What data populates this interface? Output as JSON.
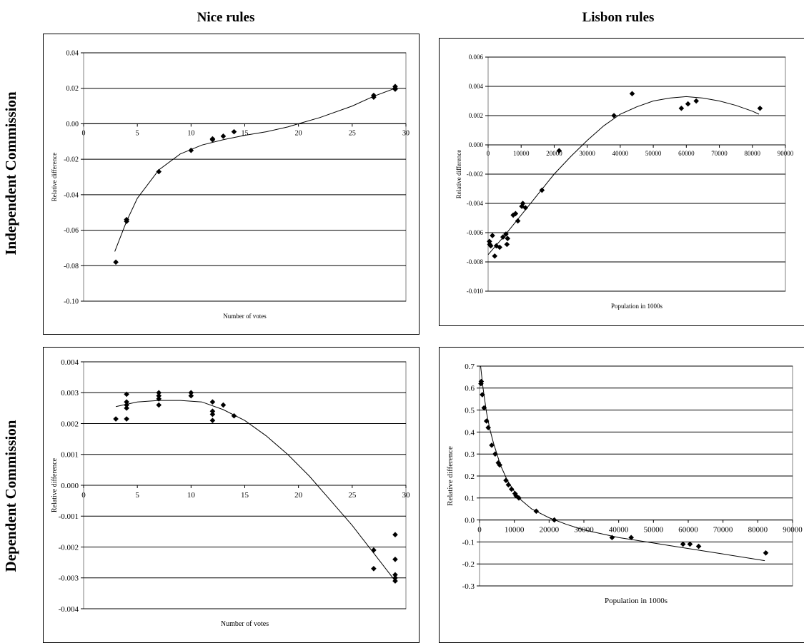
{
  "headers": {
    "columns": [
      "Nice rules",
      "Lisbon rules"
    ],
    "rows": [
      "Independent Commission",
      "Dependent Commission"
    ]
  },
  "chart_data": [
    {
      "type": "scatter",
      "id": "p1",
      "xlabel": "Number of votes",
      "ylabel": "Relative difference",
      "xlim": [
        0,
        30
      ],
      "ylim": [
        -0.1,
        0.04
      ],
      "xticks": [
        0,
        5,
        10,
        15,
        20,
        25,
        30
      ],
      "yticks": [
        0.04,
        0.02,
        0.0,
        -0.02,
        -0.04,
        -0.06,
        -0.08,
        -0.1
      ],
      "ytick_decimals": 2,
      "grid": true,
      "points": [
        [
          3,
          -0.078
        ],
        [
          4,
          -0.055
        ],
        [
          4,
          -0.054
        ],
        [
          7,
          -0.027
        ],
        [
          10,
          -0.015
        ],
        [
          12,
          -0.009
        ],
        [
          12,
          -0.0085
        ],
        [
          13,
          -0.007
        ],
        [
          14,
          -0.0045
        ],
        [
          27,
          0.016
        ],
        [
          27,
          0.015
        ],
        [
          29,
          0.02
        ],
        [
          29,
          0.021
        ],
        [
          29,
          0.0195
        ]
      ],
      "trend": [
        [
          2.9,
          -0.072
        ],
        [
          4,
          -0.055
        ],
        [
          5,
          -0.042
        ],
        [
          7,
          -0.026
        ],
        [
          9,
          -0.017
        ],
        [
          11,
          -0.012
        ],
        [
          13,
          -0.009
        ],
        [
          15,
          -0.0065
        ],
        [
          17,
          -0.0045
        ],
        [
          19,
          -0.0018
        ],
        [
          20,
          0.0
        ],
        [
          22,
          0.0035
        ],
        [
          25,
          0.01
        ],
        [
          27,
          0.0155
        ],
        [
          29,
          0.02
        ]
      ]
    },
    {
      "type": "scatter",
      "id": "p2",
      "xlabel": "Population in 1000s",
      "ylabel": "Relative difference",
      "xlim": [
        0,
        90000
      ],
      "ylim": [
        -0.01,
        0.006
      ],
      "xticks": [
        0,
        10000,
        20000,
        30000,
        40000,
        50000,
        60000,
        70000,
        80000,
        90000
      ],
      "yticks": [
        0.006,
        0.004,
        0.002,
        0.0,
        -0.002,
        -0.004,
        -0.006,
        -0.008,
        -0.01
      ],
      "ytick_decimals": 3,
      "grid": true,
      "points": [
        [
          400,
          -0.0066
        ],
        [
          500,
          -0.0068
        ],
        [
          800,
          -0.0069
        ],
        [
          1300,
          -0.0062
        ],
        [
          2000,
          -0.0076
        ],
        [
          2500,
          -0.0069
        ],
        [
          3500,
          -0.007
        ],
        [
          4500,
          -0.0063
        ],
        [
          5400,
          -0.0061
        ],
        [
          5700,
          -0.0068
        ],
        [
          5900,
          -0.0064
        ],
        [
          7600,
          -0.0048
        ],
        [
          8300,
          -0.0047
        ],
        [
          9000,
          -0.0052
        ],
        [
          10200,
          -0.0042
        ],
        [
          10500,
          -0.004
        ],
        [
          11300,
          -0.0043
        ],
        [
          16300,
          -0.0031
        ],
        [
          21500,
          -0.0004
        ],
        [
          38100,
          0.002
        ],
        [
          43600,
          0.0035
        ],
        [
          58500,
          0.0025
        ],
        [
          60500,
          0.0028
        ],
        [
          63000,
          0.003
        ],
        [
          82300,
          0.0025
        ]
      ],
      "trend": [
        [
          0,
          -0.0075
        ],
        [
          5000,
          -0.0062
        ],
        [
          10000,
          -0.0048
        ],
        [
          15000,
          -0.0034
        ],
        [
          20000,
          -0.002
        ],
        [
          25000,
          -0.0008
        ],
        [
          30000,
          0.0003
        ],
        [
          35000,
          0.0013
        ],
        [
          40000,
          0.0021
        ],
        [
          45000,
          0.0026
        ],
        [
          50000,
          0.003
        ],
        [
          55000,
          0.0032
        ],
        [
          60000,
          0.0033
        ],
        [
          65000,
          0.0032
        ],
        [
          70000,
          0.003
        ],
        [
          75000,
          0.0027
        ],
        [
          80000,
          0.0023
        ],
        [
          82000,
          0.0021
        ]
      ]
    },
    {
      "type": "scatter",
      "id": "p3",
      "xlabel": "Number of votes",
      "ylabel": "Relative difference",
      "xlim": [
        0,
        30
      ],
      "ylim": [
        -0.004,
        0.004
      ],
      "xticks": [
        0,
        5,
        10,
        15,
        20,
        25,
        30
      ],
      "yticks": [
        0.004,
        0.003,
        0.002,
        0.001,
        0.0,
        -0.001,
        -0.002,
        -0.003,
        -0.004
      ],
      "ytick_decimals": 3,
      "grid": true,
      "points": [
        [
          3,
          0.00215
        ],
        [
          4,
          0.00295
        ],
        [
          4,
          0.0027
        ],
        [
          4,
          0.0026
        ],
        [
          4,
          0.0025
        ],
        [
          4,
          0.00215
        ],
        [
          7,
          0.003
        ],
        [
          7,
          0.0029
        ],
        [
          7,
          0.0028
        ],
        [
          7,
          0.0026
        ],
        [
          10,
          0.003
        ],
        [
          10,
          0.0029
        ],
        [
          12,
          0.0027
        ],
        [
          12,
          0.0024
        ],
        [
          12,
          0.0023
        ],
        [
          12,
          0.0021
        ],
        [
          13,
          0.0026
        ],
        [
          14,
          0.00225
        ],
        [
          27,
          -0.0021
        ],
        [
          27,
          -0.0027
        ],
        [
          29,
          -0.0016
        ],
        [
          29,
          -0.0024
        ],
        [
          29,
          -0.0029
        ],
        [
          29,
          -0.003
        ],
        [
          29,
          -0.0031
        ]
      ],
      "trend": [
        [
          3,
          0.00255
        ],
        [
          5,
          0.0027
        ],
        [
          7,
          0.00275
        ],
        [
          9,
          0.00275
        ],
        [
          11,
          0.0027
        ],
        [
          13,
          0.00245
        ],
        [
          15,
          0.0021
        ],
        [
          17,
          0.0016
        ],
        [
          19,
          0.001
        ],
        [
          21,
          0.0003
        ],
        [
          23,
          -0.0005
        ],
        [
          25,
          -0.0013
        ],
        [
          27,
          -0.0022
        ],
        [
          29,
          -0.0031
        ]
      ]
    },
    {
      "type": "scatter",
      "id": "p4",
      "xlabel": "Population in 1000s",
      "ylabel": "Relative difference",
      "xlim": [
        0,
        90000
      ],
      "ylim": [
        -0.3,
        0.7
      ],
      "xticks": [
        0,
        10000,
        20000,
        30000,
        40000,
        50000,
        60000,
        70000,
        80000,
        90000
      ],
      "yticks": [
        0.7,
        0.6,
        0.5,
        0.4,
        0.3,
        0.2,
        0.1,
        0.0,
        -0.1,
        -0.2,
        -0.3
      ],
      "ytick_decimals": 1,
      "grid": true,
      "points": [
        [
          400,
          0.62
        ],
        [
          500,
          0.63
        ],
        [
          800,
          0.57
        ],
        [
          1300,
          0.51
        ],
        [
          2000,
          0.45
        ],
        [
          2500,
          0.42
        ],
        [
          3500,
          0.34
        ],
        [
          4500,
          0.3
        ],
        [
          5400,
          0.26
        ],
        [
          5800,
          0.25
        ],
        [
          7600,
          0.18
        ],
        [
          8300,
          0.16
        ],
        [
          9200,
          0.14
        ],
        [
          10200,
          0.12
        ],
        [
          10500,
          0.11
        ],
        [
          11300,
          0.1
        ],
        [
          16300,
          0.04
        ],
        [
          21500,
          0.0
        ],
        [
          38100,
          -0.08
        ],
        [
          43600,
          -0.08
        ],
        [
          58500,
          -0.11
        ],
        [
          60500,
          -0.11
        ],
        [
          63000,
          -0.12
        ],
        [
          82300,
          -0.15
        ]
      ],
      "trend": [
        [
          300,
          0.7
        ],
        [
          1000,
          0.6
        ],
        [
          2000,
          0.49
        ],
        [
          3000,
          0.41
        ],
        [
          4000,
          0.35
        ],
        [
          6000,
          0.25
        ],
        [
          8000,
          0.18
        ],
        [
          10000,
          0.13
        ],
        [
          12000,
          0.09
        ],
        [
          15000,
          0.05
        ],
        [
          20000,
          0.01
        ],
        [
          25000,
          -0.02
        ],
        [
          30000,
          -0.045
        ],
        [
          40000,
          -0.08
        ],
        [
          50000,
          -0.105
        ],
        [
          60000,
          -0.13
        ],
        [
          70000,
          -0.155
        ],
        [
          82000,
          -0.185
        ]
      ]
    }
  ]
}
